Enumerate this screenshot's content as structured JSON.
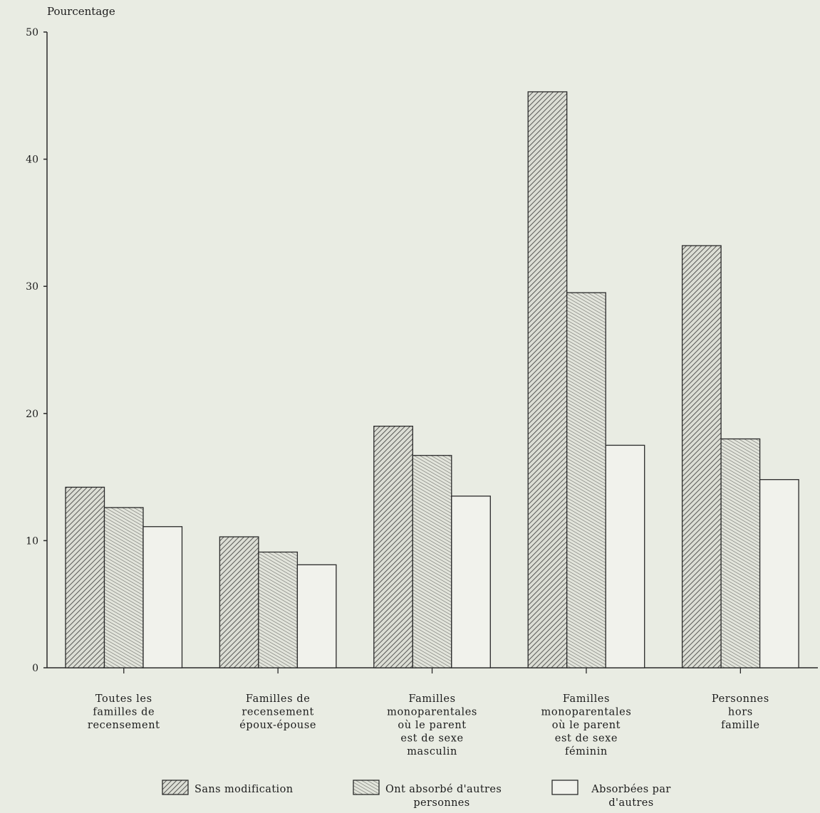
{
  "chart_data": {
    "type": "bar",
    "ylabel": "Pourcentage",
    "xlabel": "",
    "ylim": [
      0,
      50
    ],
    "yticks": [
      0,
      10,
      20,
      30,
      40,
      50
    ],
    "grid": false,
    "legend_position": "bottom",
    "categories": [
      [
        "Toutes les",
        "familles de",
        "recensement"
      ],
      [
        "Familles de",
        "recensement",
        "époux-épouse"
      ],
      [
        "Familles",
        "monoparentales",
        "où le parent",
        "est de sexe",
        "masculin"
      ],
      [
        "Familles",
        "monoparentales",
        "où le parent",
        "est de sexe",
        "féminin"
      ],
      [
        "Personnes",
        "hors",
        "famille"
      ]
    ],
    "series": [
      {
        "name": [
          "Sans modification"
        ],
        "pattern": "dense-hatch",
        "values": [
          14.2,
          10.3,
          19.0,
          45.3,
          33.2
        ]
      },
      {
        "name": [
          "Ont absorbé d'autres",
          "personnes"
        ],
        "pattern": "vertical-hatch",
        "values": [
          12.6,
          9.1,
          16.7,
          29.5,
          18.0
        ]
      },
      {
        "name": [
          "Absorbées par",
          "d'autres"
        ],
        "pattern": "empty",
        "values": [
          11.1,
          8.1,
          13.5,
          17.5,
          14.8
        ]
      }
    ]
  }
}
